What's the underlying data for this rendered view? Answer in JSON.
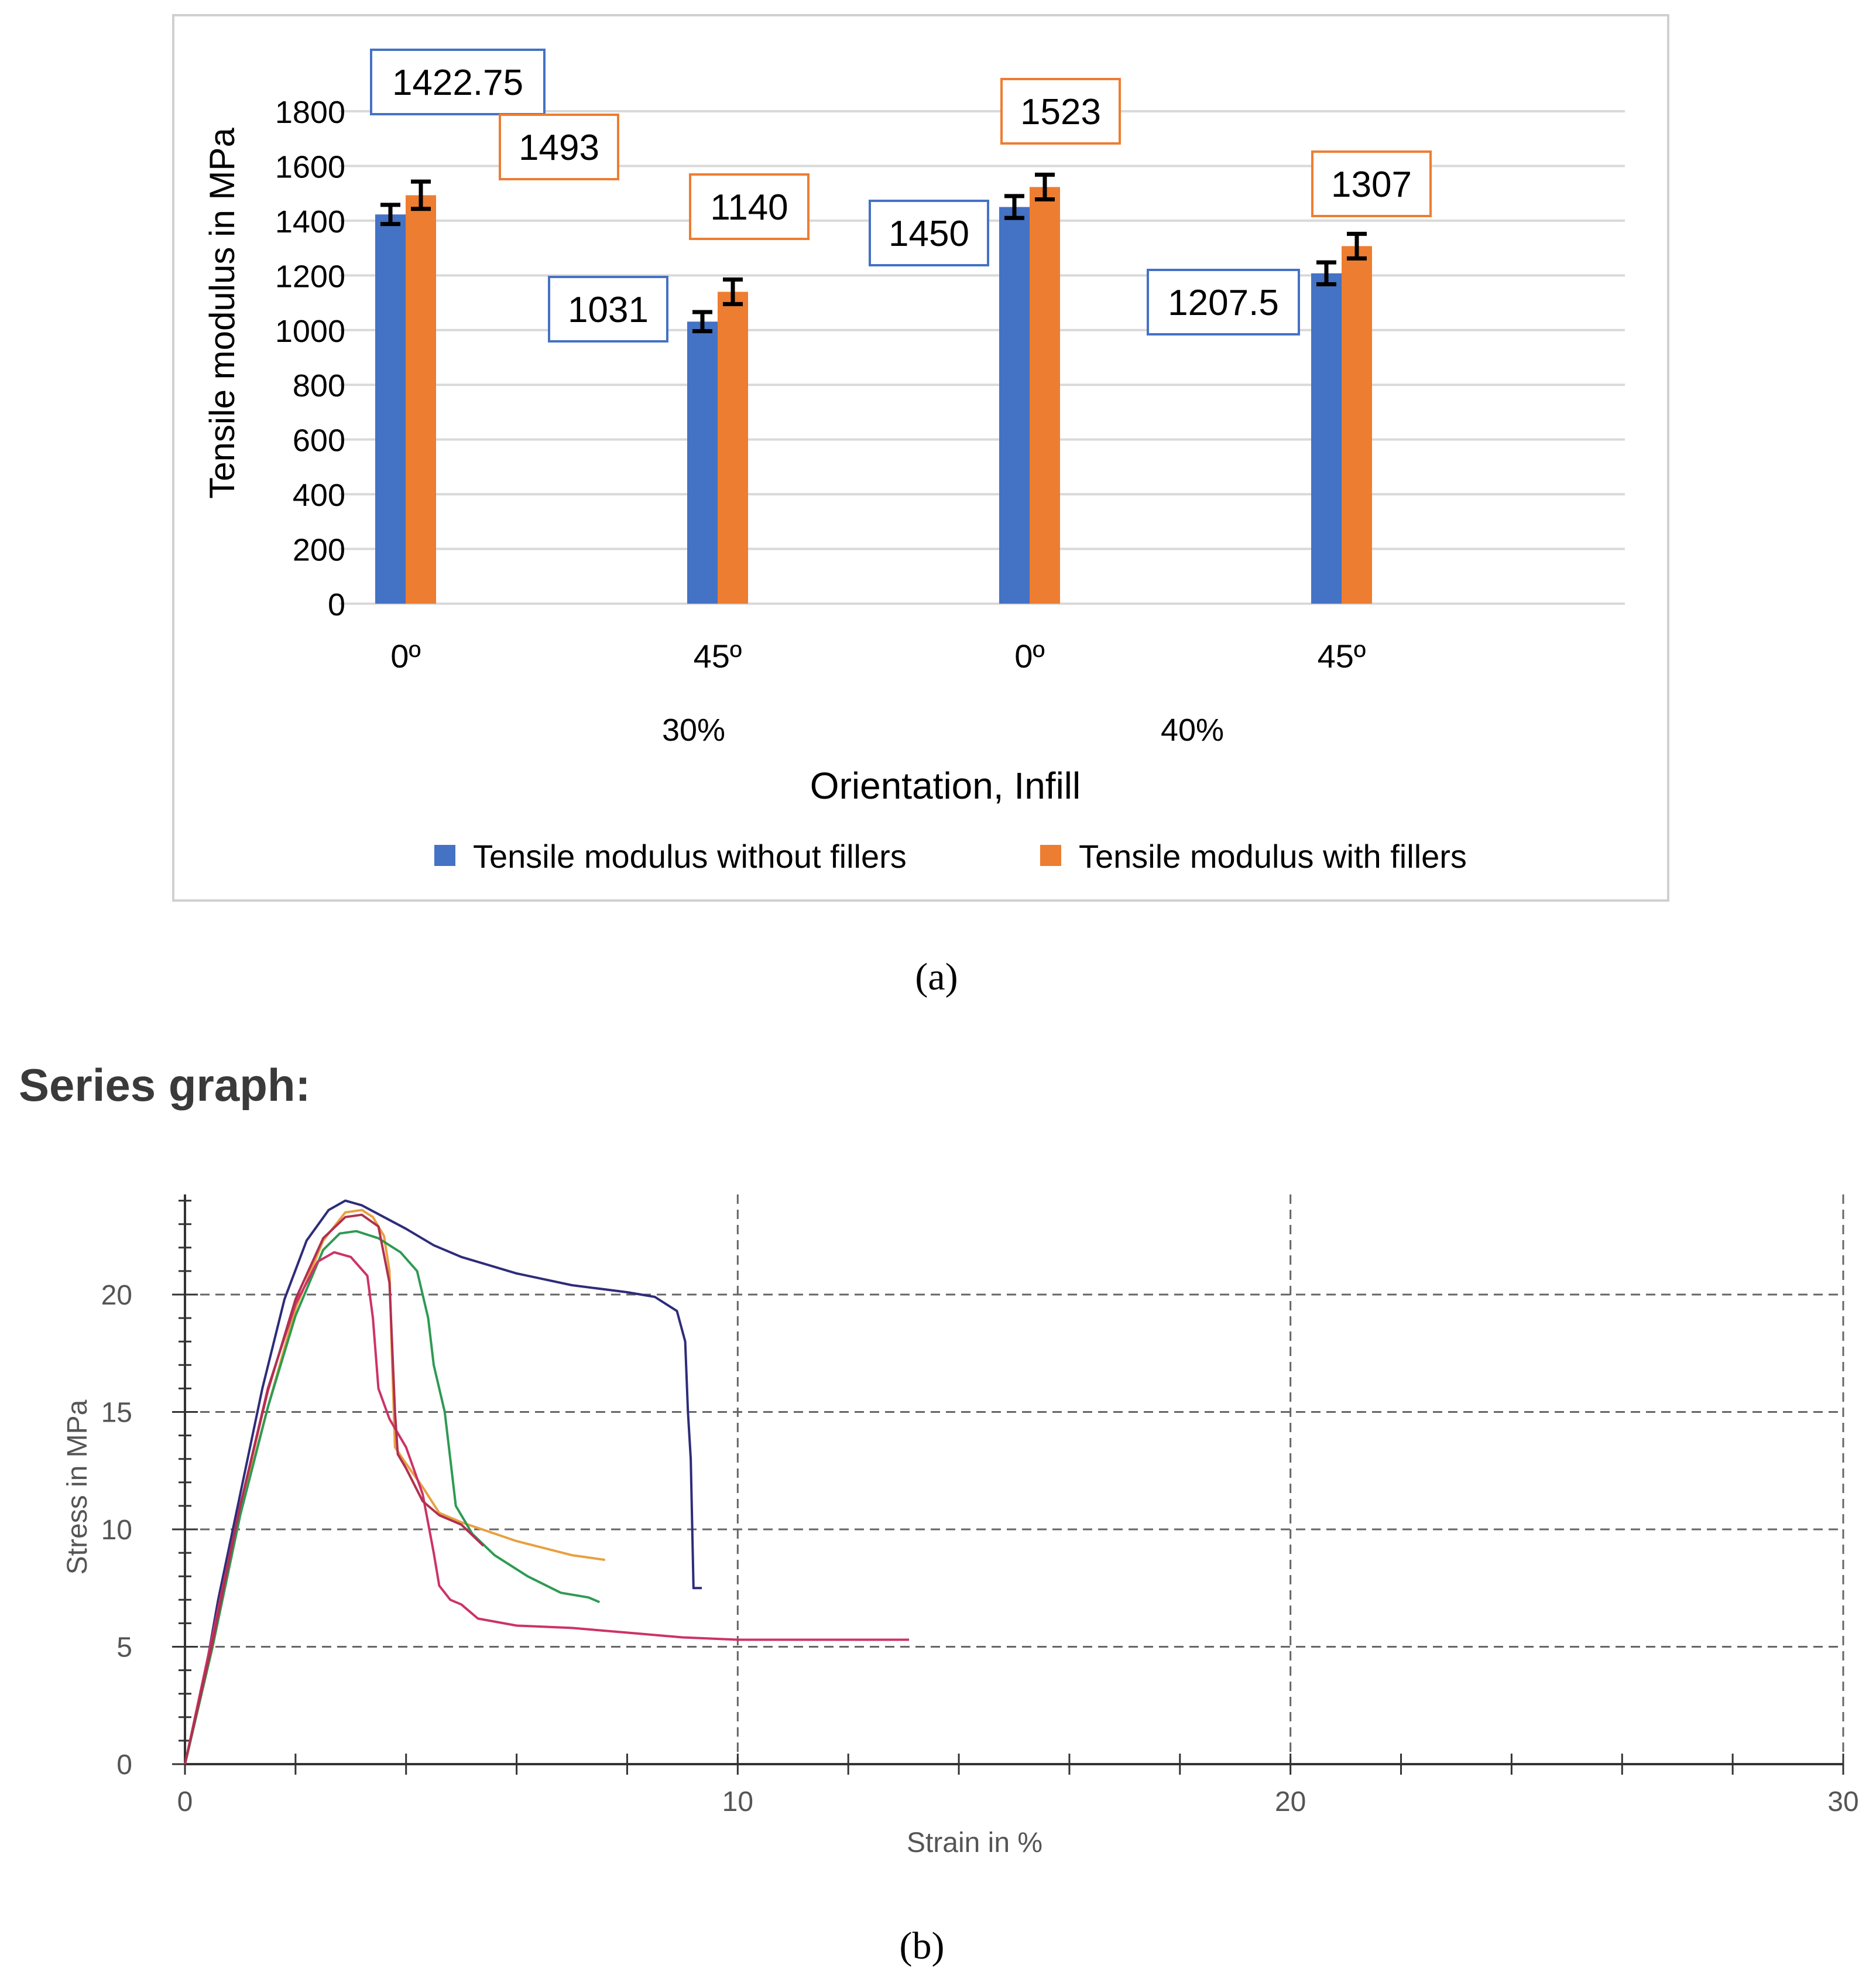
{
  "chart_data": [
    {
      "type": "bar",
      "panel_label": "(a)",
      "xlabel": "Orientation, Infill",
      "ylabel": "Tensile modulus in MPa",
      "ylim": [
        0,
        1800
      ],
      "yticks": [
        "0",
        "200",
        "400",
        "600",
        "800",
        "1000",
        "1200",
        "1400",
        "1600",
        "1800"
      ],
      "grid": true,
      "legend_position": "bottom",
      "categories": [
        "0º",
        "45º",
        "0º",
        "45º"
      ],
      "group_labels": [
        {
          "label": "30%",
          "categories": [
            0,
            1
          ]
        },
        {
          "label": "40%",
          "categories": [
            2,
            3
          ]
        }
      ],
      "series": [
        {
          "name": "Tensile modulus without fillers",
          "color": "#4472C4",
          "values": [
            1422.75,
            1031,
            1450,
            1207.5
          ],
          "errors": [
            35,
            35,
            40,
            40
          ],
          "labels": [
            "1422.75",
            "1031",
            "1450",
            "1207.5"
          ]
        },
        {
          "name": "Tensile modulus with fillers",
          "color": "#ED7D31",
          "values": [
            1493,
            1140,
            1523,
            1307
          ],
          "errors": [
            50,
            45,
            45,
            45
          ],
          "labels": [
            "1493",
            "1140",
            "1523",
            "1307"
          ]
        }
      ]
    },
    {
      "type": "line",
      "panel_label": "(b)",
      "heading": "Series graph:",
      "xlabel": "Strain in %",
      "ylabel": "Stress in MPa",
      "xlim": [
        0,
        30
      ],
      "ylim": [
        0,
        24
      ],
      "xticks": [
        "0",
        "10",
        "20",
        "30"
      ],
      "yticks": [
        "0",
        "5",
        "10",
        "15",
        "20"
      ],
      "grid": "dashed",
      "series": [
        {
          "color": "#2E2C7A",
          "points": [
            [
              0,
              0
            ],
            [
              0.3,
              3
            ],
            [
              0.6,
              7
            ],
            [
              1,
              11.5
            ],
            [
              1.4,
              16
            ],
            [
              1.8,
              19.8
            ],
            [
              2.2,
              22.3
            ],
            [
              2.6,
              23.6
            ],
            [
              2.9,
              24.0
            ],
            [
              3.2,
              23.8
            ],
            [
              3.6,
              23.3
            ],
            [
              4,
              22.8
            ],
            [
              4.5,
              22.1
            ],
            [
              5,
              21.6
            ],
            [
              6,
              20.9
            ],
            [
              7,
              20.4
            ],
            [
              8,
              20.1
            ],
            [
              8.5,
              19.9
            ],
            [
              8.9,
              19.3
            ],
            [
              9.05,
              18.0
            ],
            [
              9.1,
              15.0
            ],
            [
              9.15,
              13.0
            ],
            [
              9.2,
              7.5
            ],
            [
              9.35,
              7.5
            ]
          ]
        },
        {
          "color": "#E8A040",
          "points": [
            [
              0,
              0
            ],
            [
              0.5,
              5
            ],
            [
              1,
              10.8
            ],
            [
              1.5,
              15.2
            ],
            [
              2,
              19.4
            ],
            [
              2.5,
              22.3
            ],
            [
              2.9,
              23.5
            ],
            [
              3.2,
              23.6
            ],
            [
              3.4,
              23.3
            ],
            [
              3.6,
              22.5
            ],
            [
              3.7,
              21.0
            ],
            [
              3.75,
              17.0
            ],
            [
              3.8,
              13.5
            ],
            [
              4.0,
              12.8
            ],
            [
              4.3,
              11.8
            ],
            [
              4.6,
              10.7
            ],
            [
              5,
              10.3
            ],
            [
              5.5,
              9.9
            ],
            [
              6,
              9.5
            ],
            [
              6.5,
              9.2
            ],
            [
              7,
              8.9
            ],
            [
              7.6,
              8.7
            ]
          ]
        },
        {
          "color": "#2E9A52",
          "points": [
            [
              0,
              0
            ],
            [
              0.5,
              5
            ],
            [
              1,
              10.6
            ],
            [
              1.5,
              15.2
            ],
            [
              2,
              19.1
            ],
            [
              2.5,
              21.9
            ],
            [
              2.8,
              22.6
            ],
            [
              3.1,
              22.7
            ],
            [
              3.5,
              22.4
            ],
            [
              3.9,
              21.8
            ],
            [
              4.2,
              21.0
            ],
            [
              4.4,
              19.0
            ],
            [
              4.5,
              17.0
            ],
            [
              4.7,
              15.0
            ],
            [
              4.8,
              13.0
            ],
            [
              4.9,
              11.0
            ],
            [
              5.2,
              9.8
            ],
            [
              5.6,
              8.9
            ],
            [
              6.2,
              8.0
            ],
            [
              6.8,
              7.3
            ],
            [
              7.3,
              7.1
            ],
            [
              7.5,
              6.9
            ]
          ]
        },
        {
          "color": "#CC3366",
          "points": [
            [
              0,
              0
            ],
            [
              0.5,
              5.5
            ],
            [
              1,
              11
            ],
            [
              1.5,
              16
            ],
            [
              2,
              19.6
            ],
            [
              2.4,
              21.4
            ],
            [
              2.7,
              21.8
            ],
            [
              3,
              21.6
            ],
            [
              3.3,
              20.8
            ],
            [
              3.4,
              19.0
            ],
            [
              3.5,
              16.0
            ],
            [
              3.7,
              14.7
            ],
            [
              4,
              13.5
            ],
            [
              4.3,
              11.5
            ],
            [
              4.5,
              9.0
            ],
            [
              4.6,
              7.6
            ],
            [
              4.8,
              7.0
            ],
            [
              5,
              6.8
            ],
            [
              5.3,
              6.2
            ],
            [
              6,
              5.9
            ],
            [
              7,
              5.8
            ],
            [
              8,
              5.6
            ],
            [
              9,
              5.4
            ],
            [
              10,
              5.3
            ],
            [
              11,
              5.3
            ],
            [
              12,
              5.3
            ],
            [
              13.1,
              5.3
            ]
          ]
        },
        {
          "color": "#B03050",
          "points": [
            [
              0,
              0
            ],
            [
              0.5,
              5.2
            ],
            [
              1,
              11
            ],
            [
              1.5,
              15.9
            ],
            [
              2,
              19.8
            ],
            [
              2.5,
              22.4
            ],
            [
              2.9,
              23.3
            ],
            [
              3.2,
              23.4
            ],
            [
              3.5,
              22.9
            ],
            [
              3.7,
              20.5
            ],
            [
              3.8,
              15.0
            ],
            [
              3.85,
              13.2
            ],
            [
              4,
              12.6
            ],
            [
              4.3,
              11.2
            ],
            [
              4.6,
              10.6
            ],
            [
              5,
              10.2
            ],
            [
              5.4,
              9.3
            ]
          ]
        }
      ]
    }
  ]
}
